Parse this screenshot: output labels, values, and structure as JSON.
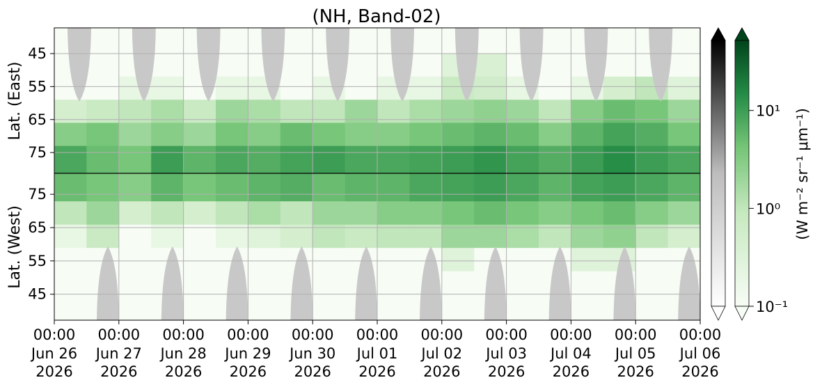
{
  "chart_data": {
    "type": "heatmap",
    "title": "(NH, Band-02)",
    "xlim": [
      "2026-06-26T00:00",
      "2026-07-06T00:00"
    ],
    "xticks": [
      {
        "value": "2026-06-26T00:00",
        "label": "00:00\nJun 26\n2026"
      },
      {
        "value": "2026-06-27T00:00",
        "label": "00:00\nJun 27\n2026"
      },
      {
        "value": "2026-06-28T00:00",
        "label": "00:00\nJun 28\n2026"
      },
      {
        "value": "2026-06-29T00:00",
        "label": "00:00\nJun 29\n2026"
      },
      {
        "value": "2026-06-30T00:00",
        "label": "00:00\nJun 30\n2026"
      },
      {
        "value": "2026-07-01T00:00",
        "label": "00:00\nJul 01\n2026"
      },
      {
        "value": "2026-07-02T00:00",
        "label": "00:00\nJul 02\n2026"
      },
      {
        "value": "2026-07-03T00:00",
        "label": "00:00\nJul 03\n2026"
      },
      {
        "value": "2026-07-04T00:00",
        "label": "00:00\nJul 04\n2026"
      },
      {
        "value": "2026-07-05T00:00",
        "label": "00:00\nJul 05\n2026"
      },
      {
        "value": "2026-07-06T00:00",
        "label": "00:00\nJul 06\n2026"
      }
    ],
    "x_bins": [
      "2026-06-26T00:00",
      "2026-06-26T12:00",
      "2026-06-27T00:00",
      "2026-06-27T12:00",
      "2026-06-28T00:00",
      "2026-06-28T12:00",
      "2026-06-29T00:00",
      "2026-06-29T12:00",
      "2026-06-30T00:00",
      "2026-06-30T12:00",
      "2026-07-01T00:00",
      "2026-07-01T12:00",
      "2026-07-02T00:00",
      "2026-07-02T12:00",
      "2026-07-03T00:00",
      "2026-07-03T12:00",
      "2026-07-04T00:00",
      "2026-07-04T12:00",
      "2026-07-05T00:00",
      "2026-07-05T12:00",
      "2026-07-06T00:00"
    ],
    "lat_bins": [
      37.2,
      45,
      52,
      59,
      66,
      73,
      81.3
    ],
    "grid": true,
    "colormap": "Greens",
    "panels": [
      {
        "ylabel": "Lat. (East)",
        "ylim": [
          37.2,
          81.3
        ],
        "yticks": [
          45,
          55,
          65,
          75
        ],
        "values": [
          [
            0.1,
            0.1,
            0.1,
            0.1,
            0.1,
            0.1,
            0.1,
            0.1,
            0.1,
            0.1,
            0.1,
            0.1,
            0.1,
            0.1,
            0.1,
            0.1,
            0.1,
            0.1,
            0.1,
            0.1
          ],
          [
            0.1,
            0.1,
            0.1,
            0.1,
            0.1,
            0.1,
            0.1,
            0.1,
            0.1,
            0.1,
            0.1,
            0.1,
            0.3,
            0.4,
            0.1,
            0.1,
            0.1,
            0.1,
            0.1,
            0.1
          ],
          [
            0.1,
            0.1,
            0.2,
            0.2,
            0.1,
            0.2,
            0.2,
            0.1,
            0.2,
            0.1,
            0.2,
            0.2,
            0.8,
            0.6,
            0.2,
            0.1,
            0.2,
            0.5,
            1,
            0.3
          ],
          [
            0.5,
            0.8,
            1,
            1.5,
            0.8,
            2,
            1.5,
            1,
            1,
            2,
            1,
            1.5,
            2,
            2.5,
            2,
            1,
            3,
            5,
            4,
            2
          ],
          [
            3,
            4,
            2,
            3,
            2,
            4,
            3,
            5,
            4,
            3,
            3,
            4,
            5,
            6,
            5,
            3,
            6,
            9,
            7,
            4
          ],
          [
            8,
            5,
            4,
            10,
            6,
            8,
            7,
            9,
            10,
            8,
            8,
            9,
            10,
            12,
            9,
            7,
            10,
            14,
            10,
            8
          ]
        ]
      },
      {
        "ylabel": "Lat. (West)",
        "ylim": [
          81.3,
          37.2
        ],
        "yticks": [
          75,
          65,
          55,
          45
        ],
        "values": [
          [
            0.1,
            0.1,
            0.1,
            0.1,
            0.1,
            0.1,
            0.1,
            0.1,
            0.1,
            0.1,
            0.1,
            0.1,
            0.1,
            0.1,
            0.1,
            0.1,
            0.1,
            0.1,
            0.1,
            0.1
          ],
          [
            0.1,
            0.1,
            0.1,
            0.1,
            0.1,
            0.1,
            0.1,
            0.1,
            0.1,
            0.1,
            0.1,
            0.1,
            0.1,
            0.1,
            0.1,
            0.1,
            0.1,
            0.1,
            0.1,
            0.1
          ],
          [
            0.1,
            0.1,
            0.1,
            0.1,
            0.1,
            0.1,
            0.1,
            0.1,
            0.1,
            0.1,
            0.1,
            0.1,
            0.3,
            0.1,
            0.1,
            0.1,
            0.3,
            0.3,
            0.1,
            0.1
          ],
          [
            0.2,
            0.8,
            0.1,
            0.2,
            0.1,
            0.2,
            0.3,
            0.5,
            1,
            0.8,
            1,
            1,
            2,
            2,
            1.5,
            1,
            2,
            2.5,
            1,
            0.5
          ],
          [
            1,
            2,
            0.5,
            1,
            0.5,
            1,
            1.5,
            1,
            2,
            2,
            3,
            3,
            4,
            5,
            4,
            3,
            4,
            5,
            3,
            2
          ],
          [
            5,
            4,
            3,
            6,
            4,
            5,
            6,
            7,
            5,
            6,
            6,
            8,
            9,
            10,
            8,
            6,
            9,
            10,
            8,
            6
          ]
        ]
      }
    ],
    "colorbar": {
      "label": "(W m⁻² sr⁻¹ μm⁻¹)",
      "scale": "log",
      "lim": [
        0.1,
        52
      ],
      "ticks": [
        {
          "value": 10,
          "label": "10¹"
        },
        {
          "value": 1,
          "label": "10⁰"
        },
        {
          "value": 0.1,
          "label": "10⁻¹"
        }
      ]
    }
  }
}
